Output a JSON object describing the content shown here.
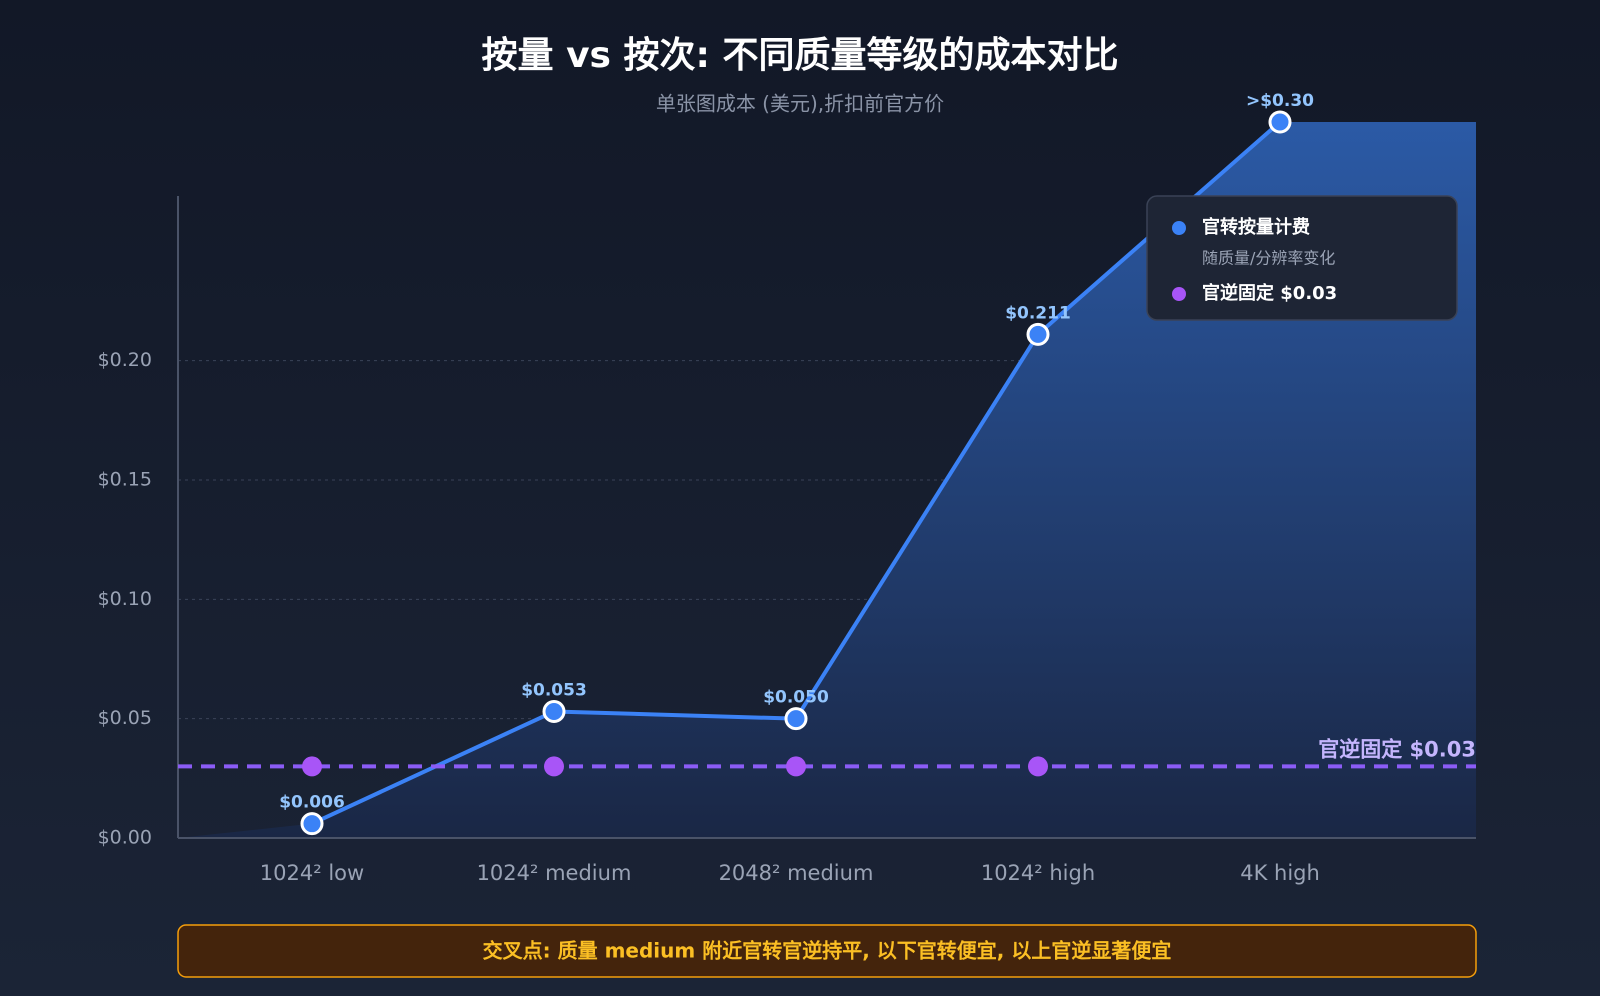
{
  "chart_data": {
    "type": "line",
    "title": "按量 vs 按次: 不同质量等级的成本对比",
    "subtitle": "单张图成本 (美元),折扣前官方价",
    "categories": [
      "1024² low",
      "1024² medium",
      "2048² medium",
      "1024² high",
      "4K high"
    ],
    "series": [
      {
        "name": "官转按量计费",
        "description": "随质量/分辨率变化",
        "color": "#3b82f6",
        "values": [
          0.006,
          0.053,
          0.05,
          0.211,
          0.3
        ],
        "value_labels": [
          "$0.006",
          "$0.053",
          "$0.050",
          "$0.211",
          ">$0.30"
        ],
        "area": true
      },
      {
        "name": "官逆固定 $0.03",
        "color": "#a855f7",
        "values": [
          0.03,
          0.03,
          0.03,
          0.03,
          null
        ],
        "marker_only": true
      }
    ],
    "reference_line": {
      "value": 0.03,
      "label": "官逆固定 $0.03",
      "color": "#8b5cf6"
    },
    "ylim": [
      0,
      0.3
    ],
    "yticks": [
      {
        "value": 0,
        "label": "$0.00"
      },
      {
        "value": 0.05,
        "label": "$0.05"
      },
      {
        "value": 0.1,
        "label": "$0.10"
      },
      {
        "value": 0.15,
        "label": "$0.15"
      },
      {
        "value": 0.2,
        "label": "$0.20"
      }
    ],
    "grid": true,
    "legend_position": "top-right",
    "note": "交叉点: 质量 medium 附近官转官逆持平, 以下官转便宜, 以上官逆显著便宜"
  }
}
